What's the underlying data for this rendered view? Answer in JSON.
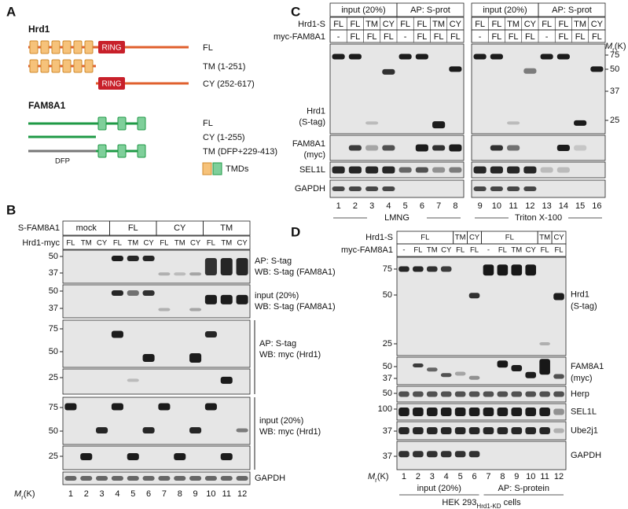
{
  "panel_a": {
    "letter": "A",
    "hrd1": {
      "title": "Hrd1",
      "ring": "RING",
      "constructs": [
        "FL",
        "TM (1-251)",
        "CY (252-617)"
      ]
    },
    "fam8a1": {
      "title": "FAM8A1",
      "constructs": [
        "FL",
        "CY (1-255)",
        "TM (DFP+229-413)"
      ],
      "dfp": "DFP"
    },
    "legend": "TMDs"
  },
  "panel_b": {
    "letter": "B",
    "row_labels": [
      "S-FAM8A1",
      "Hrd1-myc"
    ],
    "groups": [
      "mock",
      "FL",
      "CY",
      "TM"
    ],
    "lanes": [
      "FL",
      "TM",
      "CY",
      "FL",
      "TM",
      "CY",
      "FL",
      "TM",
      "CY",
      "FL",
      "TM",
      "CY"
    ],
    "blots": [
      {
        "markers": [
          50,
          37
        ],
        "label": [
          "AP:  S-tag",
          "WB: S-tag (FAM8A1)"
        ]
      },
      {
        "markers": [
          50,
          37
        ],
        "label": [
          "input (20%)",
          "WB: S-tag (FAM8A1)"
        ]
      },
      {
        "markers": [
          75,
          50
        ]
      },
      {
        "markers": [
          25
        ]
      },
      {
        "markers": [
          75,
          50
        ]
      },
      {
        "markers": [
          25
        ]
      },
      {
        "label": [
          "GAPDH"
        ]
      }
    ],
    "pair_labels": [
      [
        "AP: S-tag",
        "WB: myc (Hrd1)"
      ],
      [
        "input (20%)",
        "WB: myc (Hrd1)"
      ]
    ],
    "lane_numbers": [
      1,
      2,
      3,
      4,
      5,
      6,
      7,
      8,
      9,
      10,
      11,
      12
    ],
    "mr": {
      "m": "M",
      "sub": "r",
      "unit": "(K)"
    }
  },
  "panel_c": {
    "letter": "C",
    "conditions": [
      "input (20%)",
      "AP: S-prot"
    ],
    "row_labels": [
      "Hrd1-S",
      "myc-FAM8A1"
    ],
    "hrd1_s": [
      "FL",
      "FL",
      "TM",
      "CY",
      "FL",
      "FL",
      "TM",
      "CY"
    ],
    "myc_fam8a1": [
      "-",
      "FL",
      "FL",
      "FL",
      "-",
      "FL",
      "FL",
      "FL"
    ],
    "blots": [
      {
        "label": [
          "Hrd1",
          "(S-tag)"
        ],
        "markers": [
          75,
          50,
          37,
          25
        ]
      },
      {
        "label": [
          "FAM8A1",
          "(myc)"
        ]
      },
      {
        "label": [
          "SEL1L"
        ]
      },
      {
        "label": [
          "GAPDH"
        ]
      }
    ],
    "lane_numbers": [
      1,
      2,
      3,
      4,
      5,
      6,
      7,
      8,
      9,
      10,
      11,
      12,
      13,
      14,
      15,
      16
    ],
    "detergents": [
      "LMNG",
      "Triton X-100"
    ],
    "mr": {
      "m": "M",
      "sub": "r",
      "unit": "(K)"
    }
  },
  "panel_d": {
    "letter": "D",
    "row_labels": [
      "Hrd1-S",
      "myc-FAM8A1"
    ],
    "hrd1_s": [
      "FL",
      "TM",
      "CY",
      "FL",
      "TM",
      "CY"
    ],
    "myc_fam8a1": [
      "-",
      "FL",
      "TM",
      "CY",
      "FL",
      "FL",
      "-",
      "FL",
      "TM",
      "CY",
      "FL",
      "FL"
    ],
    "blots": [
      {
        "label": [
          "Hrd1",
          "(S-tag)"
        ],
        "markers": [
          75,
          50,
          25
        ]
      },
      {
        "label": [
          "FAM8A1",
          "(myc)"
        ],
        "markers": [
          50,
          37
        ]
      },
      {
        "label": [
          "Herp"
        ],
        "markers": [
          50
        ]
      },
      {
        "label": [
          "SEL1L"
        ],
        "markers": [
          100
        ]
      },
      {
        "label": [
          "Ube2j1"
        ],
        "markers": [
          37
        ]
      },
      {
        "label": [
          "GAPDH"
        ],
        "markers": [
          37
        ]
      }
    ],
    "lane_numbers": [
      1,
      2,
      3,
      4,
      5,
      6,
      7,
      8,
      9,
      10,
      11,
      12
    ],
    "groups": [
      "input (20%)",
      "AP: S-protein"
    ],
    "cells": {
      "main": "HEK 293",
      "sub": "Hrd1-KD",
      "rest": " cells"
    },
    "mr": {
      "m": "M",
      "sub": "r",
      "unit": "(K)"
    }
  }
}
